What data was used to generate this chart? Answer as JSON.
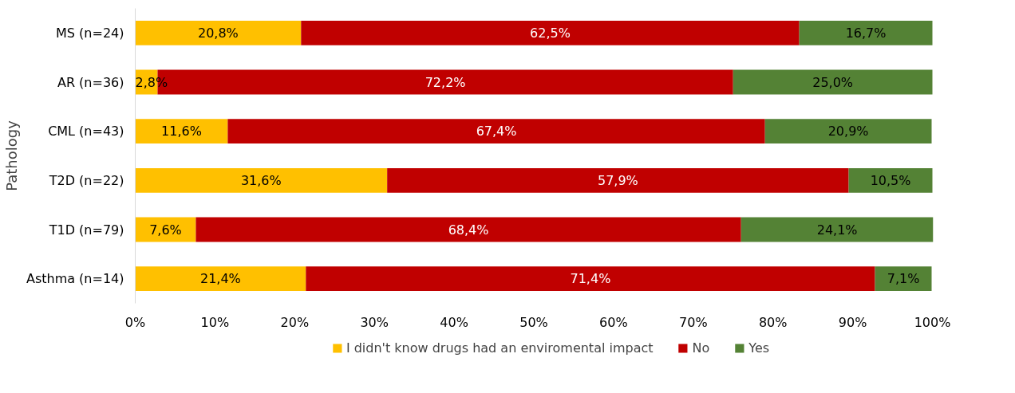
{
  "chart_data": {
    "type": "bar",
    "orientation": "horizontal",
    "stacked": true,
    "ylabel": "Pathology",
    "categories": [
      "MS (n=24)",
      "AR (n=36)",
      "CML (n=43)",
      "T2D (n=22)",
      "T1D (n=79)",
      "Asthma (n=14)"
    ],
    "series": [
      {
        "name": "I didn't know drugs had an enviromental impact",
        "color": "#ffc000",
        "values": [
          20.8,
          2.8,
          11.6,
          31.6,
          7.6,
          21.4
        ],
        "value_labels": [
          "20,8%",
          "2,8%",
          "11,6%",
          "31,6%",
          "7,6%",
          "21,4%"
        ]
      },
      {
        "name": "No",
        "color": "#c00000",
        "values": [
          62.5,
          72.2,
          67.4,
          57.9,
          68.4,
          71.4
        ],
        "value_labels": [
          "62,5%",
          "72,2%",
          "67,4%",
          "57,9%",
          "68,4%",
          "71,4%"
        ]
      },
      {
        "name": "Yes",
        "color": "#548235",
        "values": [
          16.7,
          25.0,
          20.9,
          10.5,
          24.1,
          7.1
        ],
        "value_labels": [
          "16,7%",
          "25,0%",
          "20,9%",
          "10,5%",
          "24,1%",
          "7,1%"
        ]
      }
    ],
    "xlim": [
      0,
      100.1
    ],
    "xticks": [
      {
        "value": 0,
        "label": "0%"
      },
      {
        "value": 10,
        "label": "10%"
      },
      {
        "value": 20,
        "label": "20%"
      },
      {
        "value": 30,
        "label": "30%"
      },
      {
        "value": 40,
        "label": "40%"
      },
      {
        "value": 50,
        "label": "50%"
      },
      {
        "value": 60,
        "label": "60%"
      },
      {
        "value": 70,
        "label": "70%"
      },
      {
        "value": 80,
        "label": "80%"
      },
      {
        "value": 90,
        "label": "90%"
      },
      {
        "value": 100,
        "label": "100%"
      }
    ],
    "grid": false,
    "legend": "bottom"
  }
}
